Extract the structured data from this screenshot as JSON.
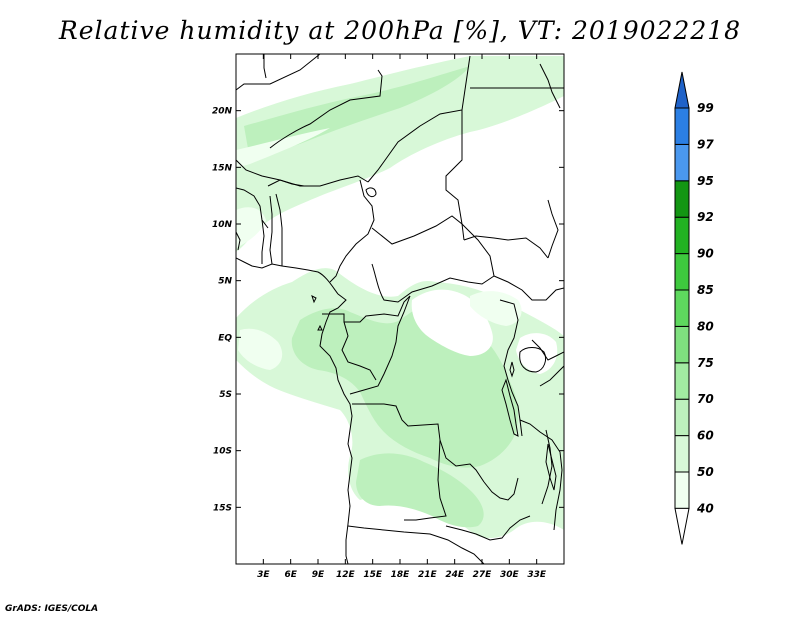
{
  "title": "Relative humidity at 200hPa [%], VT: 2019022218",
  "footer": "GrADS: IGES/COLA",
  "map": {
    "lon_range": [
      0,
      36
    ],
    "lat_range": [
      -20,
      25
    ],
    "lon_ticks": [
      {
        "value": 3,
        "label": "3E"
      },
      {
        "value": 6,
        "label": "6E"
      },
      {
        "value": 9,
        "label": "9E"
      },
      {
        "value": 12,
        "label": "12E"
      },
      {
        "value": 15,
        "label": "15E"
      },
      {
        "value": 18,
        "label": "18E"
      },
      {
        "value": 21,
        "label": "21E"
      },
      {
        "value": 24,
        "label": "24E"
      },
      {
        "value": 27,
        "label": "27E"
      },
      {
        "value": 30,
        "label": "30E"
      },
      {
        "value": 33,
        "label": "33E"
      }
    ],
    "lat_ticks": [
      {
        "value": 20,
        "label": "20N"
      },
      {
        "value": 15,
        "label": "15N"
      },
      {
        "value": 10,
        "label": "10N"
      },
      {
        "value": 5,
        "label": "5N"
      },
      {
        "value": 0,
        "label": "EQ"
      },
      {
        "value": -5,
        "label": "5S"
      },
      {
        "value": -10,
        "label": "10S"
      },
      {
        "value": -15,
        "label": "15S"
      }
    ]
  },
  "colorbar": {
    "bins": [
      {
        "from": 40,
        "to": 50,
        "color": "#f0fff0"
      },
      {
        "from": 50,
        "to": 60,
        "color": "#d8f8d8"
      },
      {
        "from": 60,
        "to": 70,
        "color": "#bdf0bd"
      },
      {
        "from": 70,
        "to": 75,
        "color": "#a2eba2"
      },
      {
        "from": 75,
        "to": 80,
        "color": "#7fe07f"
      },
      {
        "from": 80,
        "to": 85,
        "color": "#5ed85e"
      },
      {
        "from": 85,
        "to": 90,
        "color": "#3ec93e"
      },
      {
        "from": 90,
        "to": 92,
        "color": "#22b222"
      },
      {
        "from": 92,
        "to": 95,
        "color": "#139613"
      },
      {
        "from": 95,
        "to": 97,
        "color": "#4a98ef"
      },
      {
        "from": 97,
        "to": 99,
        "color": "#2b7fe4"
      },
      {
        "from": 99,
        "to": 100,
        "color": "#1f62c8"
      }
    ],
    "labels": [
      "40",
      "50",
      "60",
      "70",
      "75",
      "80",
      "85",
      "90",
      "92",
      "95",
      "97",
      "99"
    ],
    "under_color": "#ffffff",
    "over_color": "#1f62c8"
  }
}
